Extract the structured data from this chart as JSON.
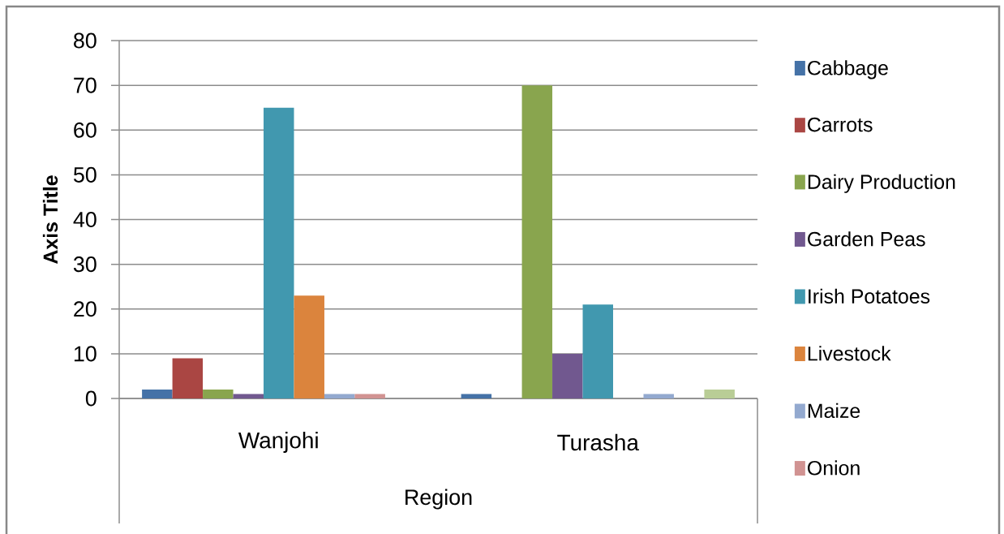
{
  "chart_data": {
    "type": "bar",
    "ylabel": "Axis Title",
    "xlabel": "Region",
    "categories": [
      "Wanjohi",
      "Turasha"
    ],
    "ylim": [
      0,
      80
    ],
    "yticks": [
      0,
      10,
      20,
      30,
      40,
      50,
      60,
      70,
      80
    ],
    "grid": "y",
    "legend": "right",
    "series": [
      {
        "name": "Cabbage",
        "color": "#4572a7",
        "values": [
          2,
          1
        ]
      },
      {
        "name": "Carrots",
        "color": "#aa4643",
        "values": [
          9,
          0
        ]
      },
      {
        "name": "Dairy Production",
        "color": "#89a54e",
        "values": [
          2,
          70
        ]
      },
      {
        "name": "Garden Peas",
        "color": "#71588f",
        "values": [
          1,
          10
        ]
      },
      {
        "name": "Irish Potatoes",
        "color": "#4198af",
        "values": [
          65,
          21
        ]
      },
      {
        "name": "Livestock",
        "color": "#db843d",
        "values": [
          23,
          0
        ]
      },
      {
        "name": "Maize",
        "color": "#93a9cf",
        "values": [
          1,
          1
        ]
      },
      {
        "name": "Onion",
        "color": "#d19392",
        "values": [
          1,
          0
        ]
      },
      {
        "color": "#b9cd96",
        "values": [
          0,
          2
        ]
      }
    ]
  }
}
